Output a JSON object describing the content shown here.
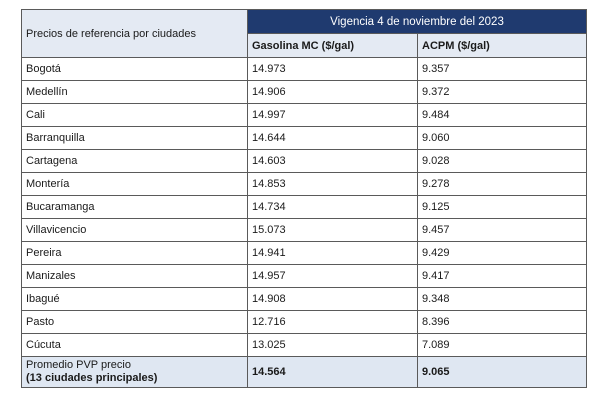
{
  "table": {
    "header_left": "Precios de referencia por ciudades",
    "header_vigencia": "Vigencia 4 de noviembre del 2023",
    "col_gasolina": "Gasolina MC ($/gal)",
    "col_acpm": "ACPM ($/gal)",
    "rows": [
      {
        "city": "Bogotá",
        "gasolina": "14.973",
        "acpm": "9.357"
      },
      {
        "city": "Medellín",
        "gasolina": "14.906",
        "acpm": "9.372"
      },
      {
        "city": "Cali",
        "gasolina": "14.997",
        "acpm": "9.484"
      },
      {
        "city": "Barranquilla",
        "gasolina": "14.644",
        "acpm": "9.060"
      },
      {
        "city": "Cartagena",
        "gasolina": "14.603",
        "acpm": "9.028"
      },
      {
        "city": "Montería",
        "gasolina": "14.853",
        "acpm": "9.278"
      },
      {
        "city": "Bucaramanga",
        "gasolina": "14.734",
        "acpm": "9.125"
      },
      {
        "city": "Villavicencio",
        "gasolina": "15.073",
        "acpm": "9.457"
      },
      {
        "city": "Pereira",
        "gasolina": "14.941",
        "acpm": "9.429"
      },
      {
        "city": "Manizales",
        "gasolina": "14.957",
        "acpm": "9.417"
      },
      {
        "city": "Ibagué",
        "gasolina": "14.908",
        "acpm": "9.348"
      },
      {
        "city": "Pasto",
        "gasolina": "12.716",
        "acpm": "8.396"
      },
      {
        "city": "Cúcuta",
        "gasolina": "13.025",
        "acpm": "7.089"
      }
    ],
    "average": {
      "label_line1": "Promedio PVP precio",
      "label_line2": "(13 ciudades principales)",
      "gasolina": "14.564",
      "acpm": "9.065"
    }
  }
}
